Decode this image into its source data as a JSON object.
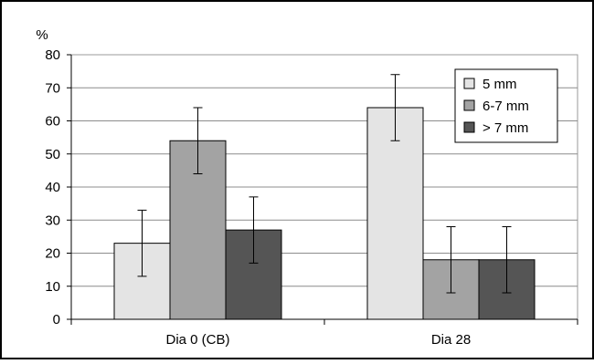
{
  "chart_data": {
    "type": "bar",
    "ylabel": "%",
    "categories": [
      "Dia 0 (CB)",
      "Dia 28"
    ],
    "ylim": [
      0,
      80
    ],
    "yticks": [
      0,
      10,
      20,
      30,
      40,
      50,
      60,
      70,
      80
    ],
    "grid": true,
    "legend_position": "top-right",
    "series": [
      {
        "name": "5 mm",
        "color": "#e4e4e4",
        "values": [
          23,
          64
        ],
        "error": [
          10,
          10
        ]
      },
      {
        "name": "6-7 mm",
        "color": "#a3a3a3",
        "values": [
          54,
          18
        ],
        "error": [
          10,
          10
        ]
      },
      {
        "name": "> 7 mm",
        "color": "#555555",
        "values": [
          27,
          18
        ],
        "error": [
          10,
          10
        ]
      }
    ]
  }
}
